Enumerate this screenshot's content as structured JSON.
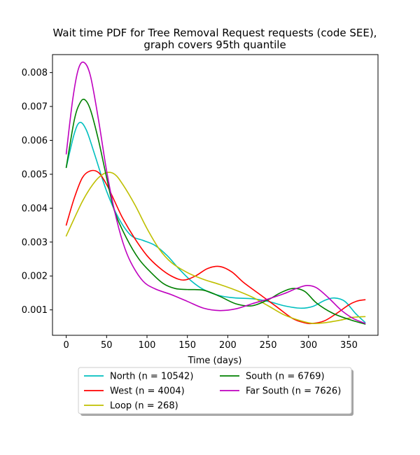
{
  "chart_data": {
    "type": "line",
    "title_line1": "Wait time PDF for Tree Removal Request  requests (code SEE),",
    "title_line2": "graph covers 95th quantile",
    "xlabel": "Time (days)",
    "ylabel": "",
    "xlim": [
      -17,
      386
    ],
    "ylim": [
      0.00025,
      0.00853
    ],
    "xticks": [
      0,
      50,
      100,
      150,
      200,
      250,
      300,
      350
    ],
    "xtick_labels": [
      "0",
      "50",
      "100",
      "150",
      "200",
      "250",
      "300",
      "350"
    ],
    "yticks": [
      0.001,
      0.002,
      0.003,
      0.004,
      0.005,
      0.006,
      0.007,
      0.008
    ],
    "ytick_labels": [
      "0.001",
      "0.002",
      "0.003",
      "0.004",
      "0.005",
      "0.006",
      "0.007",
      "0.008"
    ],
    "grid": false,
    "legend_position": "below plot, two columns, with shadow",
    "series": [
      {
        "name": "North (n = 10542)",
        "color": "#00bfbf",
        "x": [
          0,
          10,
          17,
          25,
          35,
          50,
          65,
          80,
          95,
          110,
          125,
          140,
          155,
          170,
          190,
          210,
          230,
          250,
          270,
          290,
          305,
          320,
          332,
          345,
          358,
          370
        ],
        "y": [
          0.0052,
          0.0062,
          0.00653,
          0.0063,
          0.0056,
          0.0045,
          0.0037,
          0.0032,
          0.00305,
          0.0029,
          0.0026,
          0.0022,
          0.00185,
          0.0016,
          0.00142,
          0.00135,
          0.00133,
          0.00125,
          0.00112,
          0.00105,
          0.0011,
          0.00128,
          0.00135,
          0.00125,
          0.0009,
          0.00063
        ]
      },
      {
        "name": "West (n = 4004)",
        "color": "#ff0000",
        "x": [
          0,
          10,
          20,
          30,
          40,
          50,
          60,
          70,
          85,
          100,
          115,
          130,
          145,
          160,
          175,
          190,
          205,
          220,
          240,
          260,
          280,
          295,
          305,
          320,
          335,
          350,
          360,
          370
        ],
        "y": [
          0.0035,
          0.0043,
          0.0049,
          0.0051,
          0.00505,
          0.0047,
          0.0042,
          0.0037,
          0.0031,
          0.0026,
          0.00225,
          0.002,
          0.00188,
          0.002,
          0.00222,
          0.00228,
          0.00212,
          0.0018,
          0.00145,
          0.0011,
          0.00075,
          0.00062,
          0.0006,
          0.00068,
          0.0009,
          0.00115,
          0.00126,
          0.0013
        ]
      },
      {
        "name": "Loop (n = 268)",
        "color": "#bfbf00",
        "x": [
          0,
          10,
          20,
          30,
          40,
          50,
          60,
          70,
          85,
          100,
          115,
          130,
          150,
          170,
          190,
          210,
          230,
          250,
          270,
          290,
          305,
          320,
          340,
          355,
          370
        ],
        "y": [
          0.00318,
          0.0037,
          0.0042,
          0.0046,
          0.0049,
          0.00505,
          0.005,
          0.0047,
          0.0041,
          0.0034,
          0.0028,
          0.0024,
          0.0021,
          0.0019,
          0.00175,
          0.00158,
          0.00138,
          0.00112,
          0.00085,
          0.00068,
          0.0006,
          0.00062,
          0.0007,
          0.00078,
          0.0008
        ]
      },
      {
        "name": "South (n = 6769)",
        "color": "#008000",
        "x": [
          0,
          10,
          17,
          23,
          30,
          40,
          50,
          60,
          75,
          90,
          105,
          120,
          135,
          150,
          170,
          190,
          210,
          230,
          250,
          265,
          280,
          295,
          310,
          330,
          350,
          370
        ],
        "y": [
          0.0052,
          0.0066,
          0.0071,
          0.0072,
          0.0069,
          0.006,
          0.0049,
          0.0039,
          0.0031,
          0.0025,
          0.0021,
          0.00178,
          0.00163,
          0.0016,
          0.00158,
          0.0014,
          0.00118,
          0.00112,
          0.0013,
          0.0015,
          0.00163,
          0.00155,
          0.0012,
          0.0009,
          0.00072,
          0.00058
        ]
      },
      {
        "name": "Far South (n = 7626)",
        "color": "#bf00bf",
        "x": [
          0,
          8,
          15,
          22,
          30,
          40,
          50,
          60,
          70,
          80,
          95,
          110,
          130,
          150,
          170,
          190,
          210,
          230,
          250,
          270,
          285,
          298,
          310,
          325,
          340,
          355,
          370
        ],
        "y": [
          0.0056,
          0.0072,
          0.0081,
          0.0083,
          0.0079,
          0.0066,
          0.0051,
          0.0039,
          0.003,
          0.0024,
          0.00185,
          0.00162,
          0.00145,
          0.00125,
          0.00105,
          0.00098,
          0.00103,
          0.00118,
          0.00132,
          0.00148,
          0.00163,
          0.00172,
          0.00165,
          0.00135,
          0.001,
          0.00075,
          0.0006
        ]
      }
    ]
  }
}
